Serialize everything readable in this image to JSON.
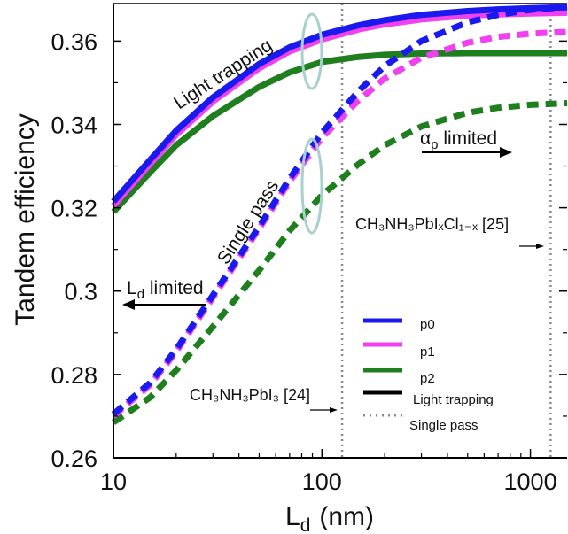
{
  "chart_data": {
    "type": "line",
    "xlabel": "L",
    "xlabel_sub": "d",
    "xlabel_unit": "(nm)",
    "ylabel": "Tandem efficiency",
    "x_scale": "log",
    "xlim": [
      10,
      1500
    ],
    "ylim": [
      0.26,
      0.369
    ],
    "x_ticks": [
      10,
      100,
      1000
    ],
    "x_tick_labels": [
      "10",
      "100",
      "1000"
    ],
    "y_ticks": [
      0.26,
      0.28,
      0.3,
      0.32,
      0.34,
      0.36
    ],
    "y_tick_labels": [
      "0.26",
      "0.28",
      "0.3",
      "0.32",
      "0.34",
      "0.36"
    ],
    "colors": {
      "p0": "#1a1aee",
      "p1": "#f040f0",
      "p2": "#1f7f1f",
      "marker": "#8a8a8a",
      "ellipse": "#a9cfcf"
    },
    "x": [
      10,
      15,
      20,
      30,
      50,
      70,
      100,
      150,
      200,
      300,
      500,
      700,
      1000,
      1500
    ],
    "series": [
      {
        "name": "p0",
        "mode": "Light trapping",
        "values": [
          0.3215,
          0.3315,
          0.3385,
          0.3465,
          0.3545,
          0.3585,
          0.3615,
          0.3638,
          0.365,
          0.3663,
          0.3672,
          0.3676,
          0.3679,
          0.3681
        ]
      },
      {
        "name": "p1",
        "mode": "Light trapping",
        "values": [
          0.3205,
          0.3305,
          0.3375,
          0.3455,
          0.3535,
          0.3575,
          0.3604,
          0.3628,
          0.364,
          0.3652,
          0.3661,
          0.3664,
          0.3666,
          0.3668
        ]
      },
      {
        "name": "p2",
        "mode": "Light trapping",
        "values": [
          0.319,
          0.3285,
          0.335,
          0.342,
          0.349,
          0.3525,
          0.355,
          0.3562,
          0.3567,
          0.357,
          0.3571,
          0.3571,
          0.3571,
          0.3571
        ]
      },
      {
        "name": "p0",
        "mode": "Single pass",
        "values": [
          0.2705,
          0.278,
          0.286,
          0.299,
          0.3155,
          0.327,
          0.338,
          0.348,
          0.354,
          0.36,
          0.3645,
          0.3663,
          0.3675,
          0.3682
        ]
      },
      {
        "name": "p1",
        "mode": "Single pass",
        "values": [
          0.27,
          0.2775,
          0.2855,
          0.2985,
          0.315,
          0.3263,
          0.3368,
          0.3458,
          0.351,
          0.356,
          0.3596,
          0.361,
          0.3618,
          0.3622
        ]
      },
      {
        "name": "p2",
        "mode": "Single pass",
        "values": [
          0.2685,
          0.2745,
          0.281,
          0.2915,
          0.305,
          0.3145,
          0.323,
          0.3305,
          0.335,
          0.3395,
          0.3428,
          0.344,
          0.3447,
          0.3451
        ]
      }
    ],
    "vlines": [
      125,
      1250
    ],
    "legend": {
      "placement": "lower-right",
      "entries": [
        {
          "label": "p0",
          "color_key": "p0",
          "style": "solid"
        },
        {
          "label": "p1",
          "color_key": "p1",
          "style": "solid"
        },
        {
          "label": "p2",
          "color_key": "p2",
          "style": "solid"
        },
        {
          "label": "Light trapping",
          "color_key": "black",
          "style": "solid"
        },
        {
          "label": "Single pass",
          "color_key": "marker",
          "style": "dotted"
        }
      ]
    },
    "annotations": {
      "light_trapping": "Light trapping",
      "single_pass": "Single pass",
      "ap_limited_main": "α",
      "ap_limited_sub": "p",
      "ap_limited_rest": " limited",
      "ld_limited_main": "L",
      "ld_limited_sub": "d",
      "ld_limited_rest": " limited",
      "ref24": "CH₃NH₃PbI₃ [24]",
      "ref25": "CH₃NH₃PbIₓCl₁₋ₓ [25]"
    }
  }
}
